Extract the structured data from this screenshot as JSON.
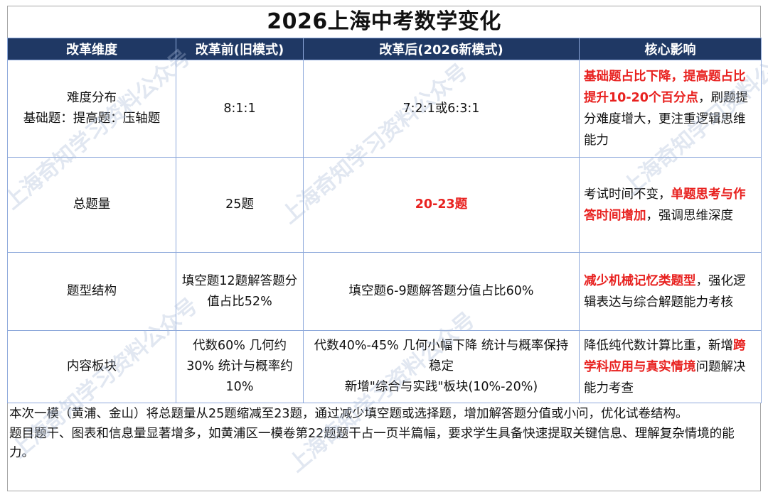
{
  "title": "2026上海中考数学变化",
  "headers": [
    "改革维度",
    "改革前(旧模式)",
    "改革后(2026新模式)",
    "核心影响"
  ],
  "rows": [
    {
      "dimension": [
        "难度分布",
        "基础题：提高题：压轴题"
      ],
      "before": "8:1:1",
      "after": "7:2:1或6:3:1",
      "after_highlight": false,
      "impact_parts": [
        {
          "text": "基础题占比下降，提高题占比提升10-20个百分点",
          "hl": true
        },
        {
          "text": "，刷题提分难度增大，更注重逻辑思维能力",
          "hl": false
        }
      ]
    },
    {
      "dimension": [
        "总题量"
      ],
      "before": "25题",
      "after": "20-23题",
      "after_highlight": true,
      "impact_parts": [
        {
          "text": "考试时间不变，",
          "hl": false
        },
        {
          "text": "单题思考与作答时间增加",
          "hl": true
        },
        {
          "text": "，强调思维深度",
          "hl": false
        }
      ]
    },
    {
      "dimension": [
        "题型结构"
      ],
      "before": "填空题12题解答题分值占比52%",
      "after": "填空题6-9题解答题分值占比60%",
      "after_highlight": false,
      "impact_parts": [
        {
          "text": "减少机械记忆类题型",
          "hl": true
        },
        {
          "text": "，强化逻辑表达与综合解题能力考核",
          "hl": false
        }
      ]
    },
    {
      "dimension": [
        "内容板块"
      ],
      "before": "代数60% 几何约30% 统计与概率约10%",
      "after": "代数40%-45% 几何小幅下降 统计与概率保持稳定\n新增\"综合与实践\"板块(10%-20%)",
      "after_highlight": false,
      "impact_parts": [
        {
          "text": "降低纯代数计算比重，新增",
          "hl": false
        },
        {
          "text": "跨学科应用与真实情境",
          "hl": true
        },
        {
          "text": "问题解决能力考查",
          "hl": false
        }
      ]
    }
  ],
  "notes": [
    "本次一模（黄浦、金山）将总题量从25题缩减至23题，通过减少填空题或选择题，增加解答题分值或小问，优化试卷结构。",
    "题目题干、图表和信息量显著增多，如黄浦区一模卷第22题题干占一页半篇幅，要求学生具备快速提取关键信息、理解复杂情境的能力。"
  ],
  "watermark": "上海奇知学习资料公众号",
  "colors": {
    "header_bg": "#1f3864",
    "highlight": "#e8211f",
    "grid": "#8ea9db"
  }
}
